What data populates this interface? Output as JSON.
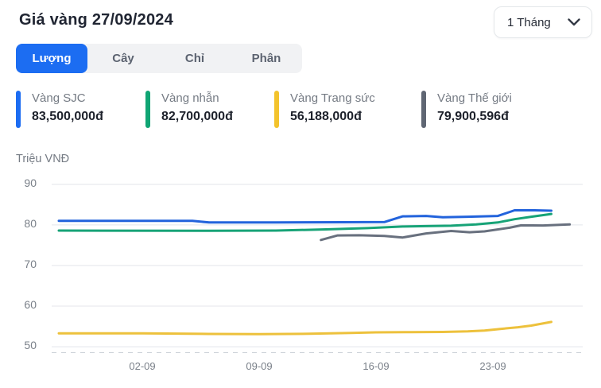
{
  "header": {
    "title": "Giá vàng 27/09/2024",
    "period": "1 Tháng"
  },
  "tabs": [
    {
      "label": "Lượng",
      "active": true
    },
    {
      "label": "Cây",
      "active": false
    },
    {
      "label": "Chỉ",
      "active": false
    },
    {
      "label": "Phân",
      "active": false
    }
  ],
  "legend": [
    {
      "name": "Vàng SJC",
      "value": "83,500,000đ",
      "color": "#1c6cf2"
    },
    {
      "name": "Vàng nhẫn",
      "value": "82,700,000đ",
      "color": "#10a574"
    },
    {
      "name": "Vàng Trang sức",
      "value": "56,188,000đ",
      "color": "#f3c32c"
    },
    {
      "name": "Vàng Thế giới",
      "value": "79,900,596đ",
      "color": "#5f6673"
    }
  ],
  "colors": {
    "accent_blue": "#1c6df2",
    "grid": "#e9ebef",
    "axis_dash": "#ced3d9",
    "tick_text": "#7a8089"
  },
  "chart_data": {
    "type": "line",
    "title": "Giá vàng 27/09/2024",
    "ylabel": "Triệu VNĐ",
    "y_ticks": [
      90,
      80,
      70,
      60,
      50
    ],
    "ylim": [
      47,
      92
    ],
    "grid": true,
    "legend_position": "top",
    "x_unit": "days since 27-08-2024 (d=6 -> 02-09)",
    "x_ticks": [
      {
        "label": "02-09",
        "d": 6
      },
      {
        "label": "09-09",
        "d": 13
      },
      {
        "label": "16-09",
        "d": 20
      },
      {
        "label": "23-09",
        "d": 27
      }
    ],
    "series": [
      {
        "name": "Vàng SJC",
        "color": "#2263dc",
        "points": [
          [
            1,
            81.0
          ],
          [
            9,
            81.0
          ],
          [
            10,
            80.6
          ],
          [
            14,
            80.6
          ],
          [
            18,
            80.65
          ],
          [
            20.5,
            80.7
          ],
          [
            21.6,
            82.1
          ],
          [
            23,
            82.2
          ],
          [
            24,
            81.9
          ],
          [
            25.5,
            82.0
          ],
          [
            27.3,
            82.2
          ],
          [
            28.3,
            83.6
          ],
          [
            29.5,
            83.6
          ],
          [
            30.5,
            83.5
          ]
        ]
      },
      {
        "name": "Vàng nhẫn",
        "color": "#17a377",
        "points": [
          [
            1,
            78.6
          ],
          [
            10,
            78.55
          ],
          [
            14,
            78.6
          ],
          [
            17,
            78.9
          ],
          [
            19.5,
            79.2
          ],
          [
            21.6,
            79.6
          ],
          [
            23,
            79.7
          ],
          [
            24.5,
            79.8
          ],
          [
            26,
            80.1
          ],
          [
            27.3,
            80.6
          ],
          [
            28.3,
            81.4
          ],
          [
            29.3,
            82.0
          ],
          [
            30.5,
            82.7
          ]
        ]
      },
      {
        "name": "Vàng Trang sức",
        "color": "#edc13c",
        "points": [
          [
            1,
            53.3
          ],
          [
            6,
            53.3
          ],
          [
            10,
            53.15
          ],
          [
            13,
            53.1
          ],
          [
            16,
            53.2
          ],
          [
            18.5,
            53.4
          ],
          [
            20,
            53.55
          ],
          [
            22,
            53.6
          ],
          [
            24,
            53.65
          ],
          [
            25.5,
            53.8
          ],
          [
            26.5,
            54.0
          ],
          [
            27.5,
            54.4
          ],
          [
            28.5,
            54.8
          ],
          [
            29.3,
            55.2
          ],
          [
            30.5,
            56.1
          ]
        ]
      },
      {
        "name": "Vàng Thế giới",
        "color": "#68707e",
        "points": [
          [
            16.7,
            76.3
          ],
          [
            17.7,
            77.4
          ],
          [
            19,
            77.45
          ],
          [
            20.5,
            77.3
          ],
          [
            21.6,
            76.9
          ],
          [
            23,
            77.9
          ],
          [
            24.5,
            78.5
          ],
          [
            25.6,
            78.2
          ],
          [
            26.5,
            78.4
          ],
          [
            28,
            79.3
          ],
          [
            28.7,
            79.9
          ],
          [
            30,
            79.85
          ],
          [
            31.6,
            80.1
          ]
        ]
      }
    ]
  }
}
